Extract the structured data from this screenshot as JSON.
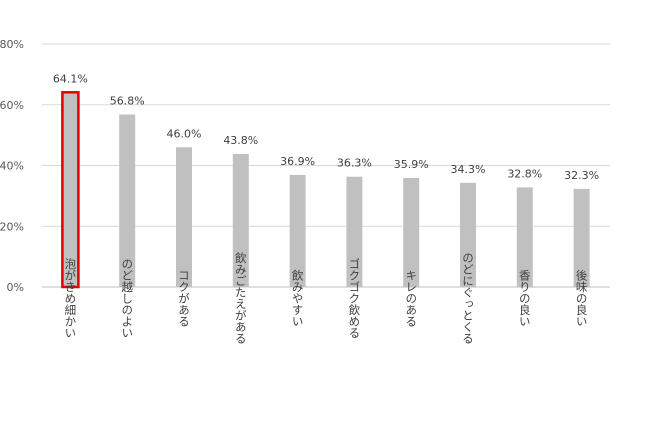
{
  "chart_data": {
    "type": "bar",
    "title": "",
    "xlabel": "",
    "ylabel": "",
    "ylim": [
      0,
      80
    ],
    "yticks": [
      0,
      20,
      40,
      60,
      80
    ],
    "ytick_labels": [
      "0%",
      "20%",
      "40%",
      "60%",
      "80%"
    ],
    "grid": true,
    "categories": [
      "泡がきめ細かい",
      "のど越しのよい",
      "コクがある",
      "飲みごたえがある",
      "飲みやすい",
      "ゴクゴク飲める",
      "キレのある",
      "のどにぐっとくる",
      "香りの良い",
      "後味の良い"
    ],
    "values": [
      64.1,
      56.8,
      46.0,
      43.8,
      36.9,
      36.3,
      35.9,
      34.3,
      32.8,
      32.3
    ],
    "data_labels": [
      "64.1%",
      "56.8%",
      "46.0%",
      "43.8%",
      "36.9%",
      "36.3%",
      "35.9%",
      "34.3%",
      "32.8%",
      "32.3%"
    ],
    "highlight_index": 0,
    "colors": {
      "bar": "#c0c0c0",
      "highlight_border": "#e00000",
      "grid": "#d9d9d9",
      "axis": "#bfbfbf"
    }
  }
}
